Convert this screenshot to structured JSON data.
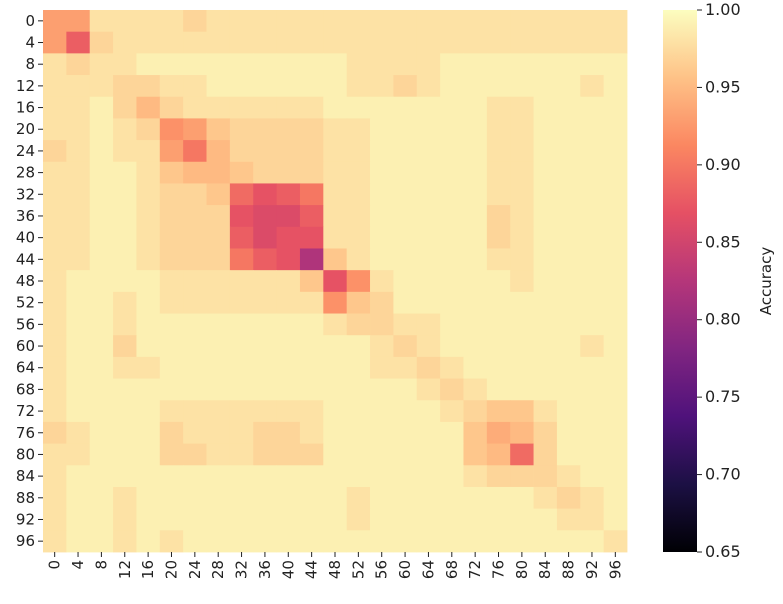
{
  "chart_data": {
    "type": "heatmap",
    "colormap": "magma",
    "colorbar_label": "Accuracy",
    "x_labels": [
      0,
      4,
      8,
      12,
      16,
      20,
      24,
      28,
      32,
      36,
      40,
      44,
      48,
      52,
      56,
      60,
      64,
      68,
      72,
      76,
      80,
      84,
      88,
      92,
      96
    ],
    "y_labels": [
      0,
      4,
      8,
      12,
      16,
      20,
      24,
      28,
      32,
      36,
      40,
      44,
      48,
      52,
      56,
      60,
      64,
      68,
      72,
      76,
      80,
      84,
      88,
      92,
      96
    ],
    "clim": [
      0.65,
      1.0
    ],
    "cticks": [
      0.65,
      {
        "value": 0.7,
        "label": "0.70"
      },
      0.75,
      {
        "value": 0.8,
        "label": "0.80"
      },
      0.85,
      {
        "value": 0.9,
        "label": "0.90"
      },
      0.95,
      {
        "value": 1.0,
        "label": "1.00"
      }
    ],
    "values": [
      [
        0.93,
        0.93,
        0.98,
        0.98,
        0.98,
        0.98,
        0.97,
        0.98,
        0.98,
        0.98,
        0.98,
        0.98,
        0.98,
        0.98,
        0.98,
        0.98,
        0.98,
        0.98,
        0.98,
        0.98,
        0.98,
        0.98,
        0.98,
        0.98,
        0.98
      ],
      [
        0.93,
        0.88,
        0.97,
        0.98,
        0.98,
        0.98,
        0.98,
        0.98,
        0.98,
        0.98,
        0.98,
        0.98,
        0.98,
        0.98,
        0.98,
        0.98,
        0.98,
        0.98,
        0.98,
        0.98,
        0.98,
        0.98,
        0.98,
        0.98,
        0.98
      ],
      [
        0.98,
        0.97,
        0.98,
        0.98,
        0.99,
        0.99,
        0.99,
        0.99,
        0.99,
        0.99,
        0.99,
        0.99,
        0.99,
        0.98,
        0.98,
        0.98,
        0.98,
        0.99,
        0.99,
        0.99,
        0.99,
        0.99,
        0.99,
        0.99,
        0.99
      ],
      [
        0.98,
        0.98,
        0.98,
        0.97,
        0.97,
        0.98,
        0.98,
        0.99,
        0.99,
        0.99,
        0.99,
        0.99,
        0.99,
        0.98,
        0.98,
        0.97,
        0.98,
        0.99,
        0.99,
        0.99,
        0.99,
        0.99,
        0.99,
        0.98,
        0.99
      ],
      [
        0.98,
        0.98,
        0.99,
        0.97,
        0.95,
        0.97,
        0.98,
        0.98,
        0.98,
        0.98,
        0.98,
        0.98,
        0.99,
        0.99,
        0.99,
        0.99,
        0.99,
        0.99,
        0.99,
        0.98,
        0.98,
        0.99,
        0.99,
        0.99,
        0.99
      ],
      [
        0.98,
        0.98,
        0.99,
        0.98,
        0.97,
        0.92,
        0.93,
        0.96,
        0.97,
        0.97,
        0.97,
        0.97,
        0.98,
        0.98,
        0.99,
        0.99,
        0.99,
        0.99,
        0.99,
        0.98,
        0.98,
        0.99,
        0.99,
        0.99,
        0.99
      ],
      [
        0.97,
        0.98,
        0.99,
        0.98,
        0.98,
        0.93,
        0.9,
        0.95,
        0.97,
        0.97,
        0.97,
        0.97,
        0.98,
        0.98,
        0.99,
        0.99,
        0.99,
        0.99,
        0.99,
        0.98,
        0.98,
        0.99,
        0.99,
        0.99,
        0.99
      ],
      [
        0.98,
        0.98,
        0.99,
        0.99,
        0.98,
        0.96,
        0.95,
        0.95,
        0.96,
        0.97,
        0.97,
        0.97,
        0.98,
        0.98,
        0.99,
        0.99,
        0.99,
        0.99,
        0.99,
        0.98,
        0.98,
        0.99,
        0.99,
        0.99,
        0.99
      ],
      [
        0.98,
        0.98,
        0.99,
        0.99,
        0.98,
        0.97,
        0.97,
        0.96,
        0.89,
        0.87,
        0.88,
        0.9,
        0.98,
        0.98,
        0.99,
        0.99,
        0.99,
        0.99,
        0.99,
        0.98,
        0.98,
        0.99,
        0.99,
        0.99,
        0.99
      ],
      [
        0.98,
        0.98,
        0.99,
        0.99,
        0.98,
        0.97,
        0.97,
        0.97,
        0.87,
        0.86,
        0.86,
        0.88,
        0.98,
        0.98,
        0.99,
        0.99,
        0.99,
        0.99,
        0.99,
        0.97,
        0.98,
        0.99,
        0.99,
        0.99,
        0.99
      ],
      [
        0.98,
        0.98,
        0.99,
        0.99,
        0.98,
        0.97,
        0.97,
        0.97,
        0.88,
        0.86,
        0.87,
        0.87,
        0.98,
        0.98,
        0.99,
        0.99,
        0.99,
        0.99,
        0.99,
        0.97,
        0.98,
        0.99,
        0.99,
        0.99,
        0.99
      ],
      [
        0.98,
        0.98,
        0.99,
        0.99,
        0.98,
        0.97,
        0.97,
        0.97,
        0.9,
        0.88,
        0.87,
        0.82,
        0.96,
        0.98,
        0.99,
        0.99,
        0.99,
        0.99,
        0.99,
        0.98,
        0.98,
        0.99,
        0.99,
        0.99,
        0.99
      ],
      [
        0.98,
        0.99,
        0.99,
        0.99,
        0.99,
        0.98,
        0.98,
        0.98,
        0.98,
        0.98,
        0.98,
        0.96,
        0.87,
        0.92,
        0.98,
        0.99,
        0.99,
        0.99,
        0.99,
        0.99,
        0.98,
        0.99,
        0.99,
        0.99,
        0.99
      ],
      [
        0.98,
        0.99,
        0.99,
        0.98,
        0.99,
        0.98,
        0.98,
        0.98,
        0.98,
        0.98,
        0.98,
        0.98,
        0.92,
        0.96,
        0.97,
        0.99,
        0.99,
        0.99,
        0.99,
        0.99,
        0.99,
        0.99,
        0.99,
        0.99,
        0.99
      ],
      [
        0.98,
        0.99,
        0.99,
        0.98,
        0.99,
        0.99,
        0.99,
        0.99,
        0.99,
        0.99,
        0.99,
        0.99,
        0.98,
        0.97,
        0.97,
        0.98,
        0.98,
        0.99,
        0.99,
        0.99,
        0.99,
        0.99,
        0.99,
        0.99,
        0.99
      ],
      [
        0.98,
        0.99,
        0.99,
        0.97,
        0.99,
        0.99,
        0.99,
        0.99,
        0.99,
        0.99,
        0.99,
        0.99,
        0.99,
        0.99,
        0.98,
        0.97,
        0.98,
        0.99,
        0.99,
        0.99,
        0.99,
        0.99,
        0.99,
        0.98,
        0.99
      ],
      [
        0.98,
        0.99,
        0.99,
        0.98,
        0.98,
        0.99,
        0.99,
        0.99,
        0.99,
        0.99,
        0.99,
        0.99,
        0.99,
        0.99,
        0.98,
        0.98,
        0.97,
        0.98,
        0.99,
        0.99,
        0.99,
        0.99,
        0.99,
        0.99,
        0.99
      ],
      [
        0.98,
        0.99,
        0.99,
        0.99,
        0.99,
        0.99,
        0.99,
        0.99,
        0.99,
        0.99,
        0.99,
        0.99,
        0.99,
        0.99,
        0.99,
        0.99,
        0.98,
        0.97,
        0.98,
        0.99,
        0.99,
        0.99,
        0.99,
        0.99,
        0.99
      ],
      [
        0.98,
        0.99,
        0.99,
        0.99,
        0.99,
        0.98,
        0.98,
        0.98,
        0.98,
        0.98,
        0.98,
        0.98,
        0.99,
        0.99,
        0.99,
        0.99,
        0.99,
        0.98,
        0.97,
        0.96,
        0.96,
        0.98,
        0.99,
        0.99,
        0.99
      ],
      [
        0.97,
        0.98,
        0.99,
        0.99,
        0.99,
        0.97,
        0.98,
        0.98,
        0.98,
        0.97,
        0.97,
        0.98,
        0.99,
        0.99,
        0.99,
        0.99,
        0.99,
        0.99,
        0.96,
        0.94,
        0.95,
        0.97,
        0.99,
        0.99,
        0.99
      ],
      [
        0.98,
        0.98,
        0.99,
        0.99,
        0.99,
        0.97,
        0.97,
        0.98,
        0.98,
        0.97,
        0.97,
        0.97,
        0.99,
        0.99,
        0.99,
        0.99,
        0.99,
        0.99,
        0.96,
        0.95,
        0.89,
        0.97,
        0.99,
        0.99,
        0.99
      ],
      [
        0.98,
        0.99,
        0.99,
        0.99,
        0.99,
        0.99,
        0.99,
        0.99,
        0.99,
        0.99,
        0.99,
        0.99,
        0.99,
        0.99,
        0.99,
        0.99,
        0.99,
        0.99,
        0.98,
        0.97,
        0.97,
        0.97,
        0.98,
        0.99,
        0.99
      ],
      [
        0.98,
        0.99,
        0.99,
        0.98,
        0.99,
        0.99,
        0.99,
        0.99,
        0.99,
        0.99,
        0.99,
        0.99,
        0.99,
        0.98,
        0.99,
        0.99,
        0.99,
        0.99,
        0.99,
        0.99,
        0.99,
        0.98,
        0.97,
        0.98,
        0.99
      ],
      [
        0.98,
        0.99,
        0.99,
        0.98,
        0.99,
        0.99,
        0.99,
        0.99,
        0.99,
        0.99,
        0.99,
        0.99,
        0.99,
        0.98,
        0.99,
        0.99,
        0.99,
        0.99,
        0.99,
        0.99,
        0.99,
        0.99,
        0.98,
        0.98,
        0.99
      ],
      [
        0.98,
        0.99,
        0.99,
        0.98,
        0.99,
        0.98,
        0.99,
        0.99,
        0.99,
        0.99,
        0.99,
        0.99,
        0.99,
        0.99,
        0.99,
        0.99,
        0.99,
        0.99,
        0.99,
        0.99,
        0.99,
        0.99,
        0.99,
        0.99,
        0.98
      ]
    ]
  }
}
